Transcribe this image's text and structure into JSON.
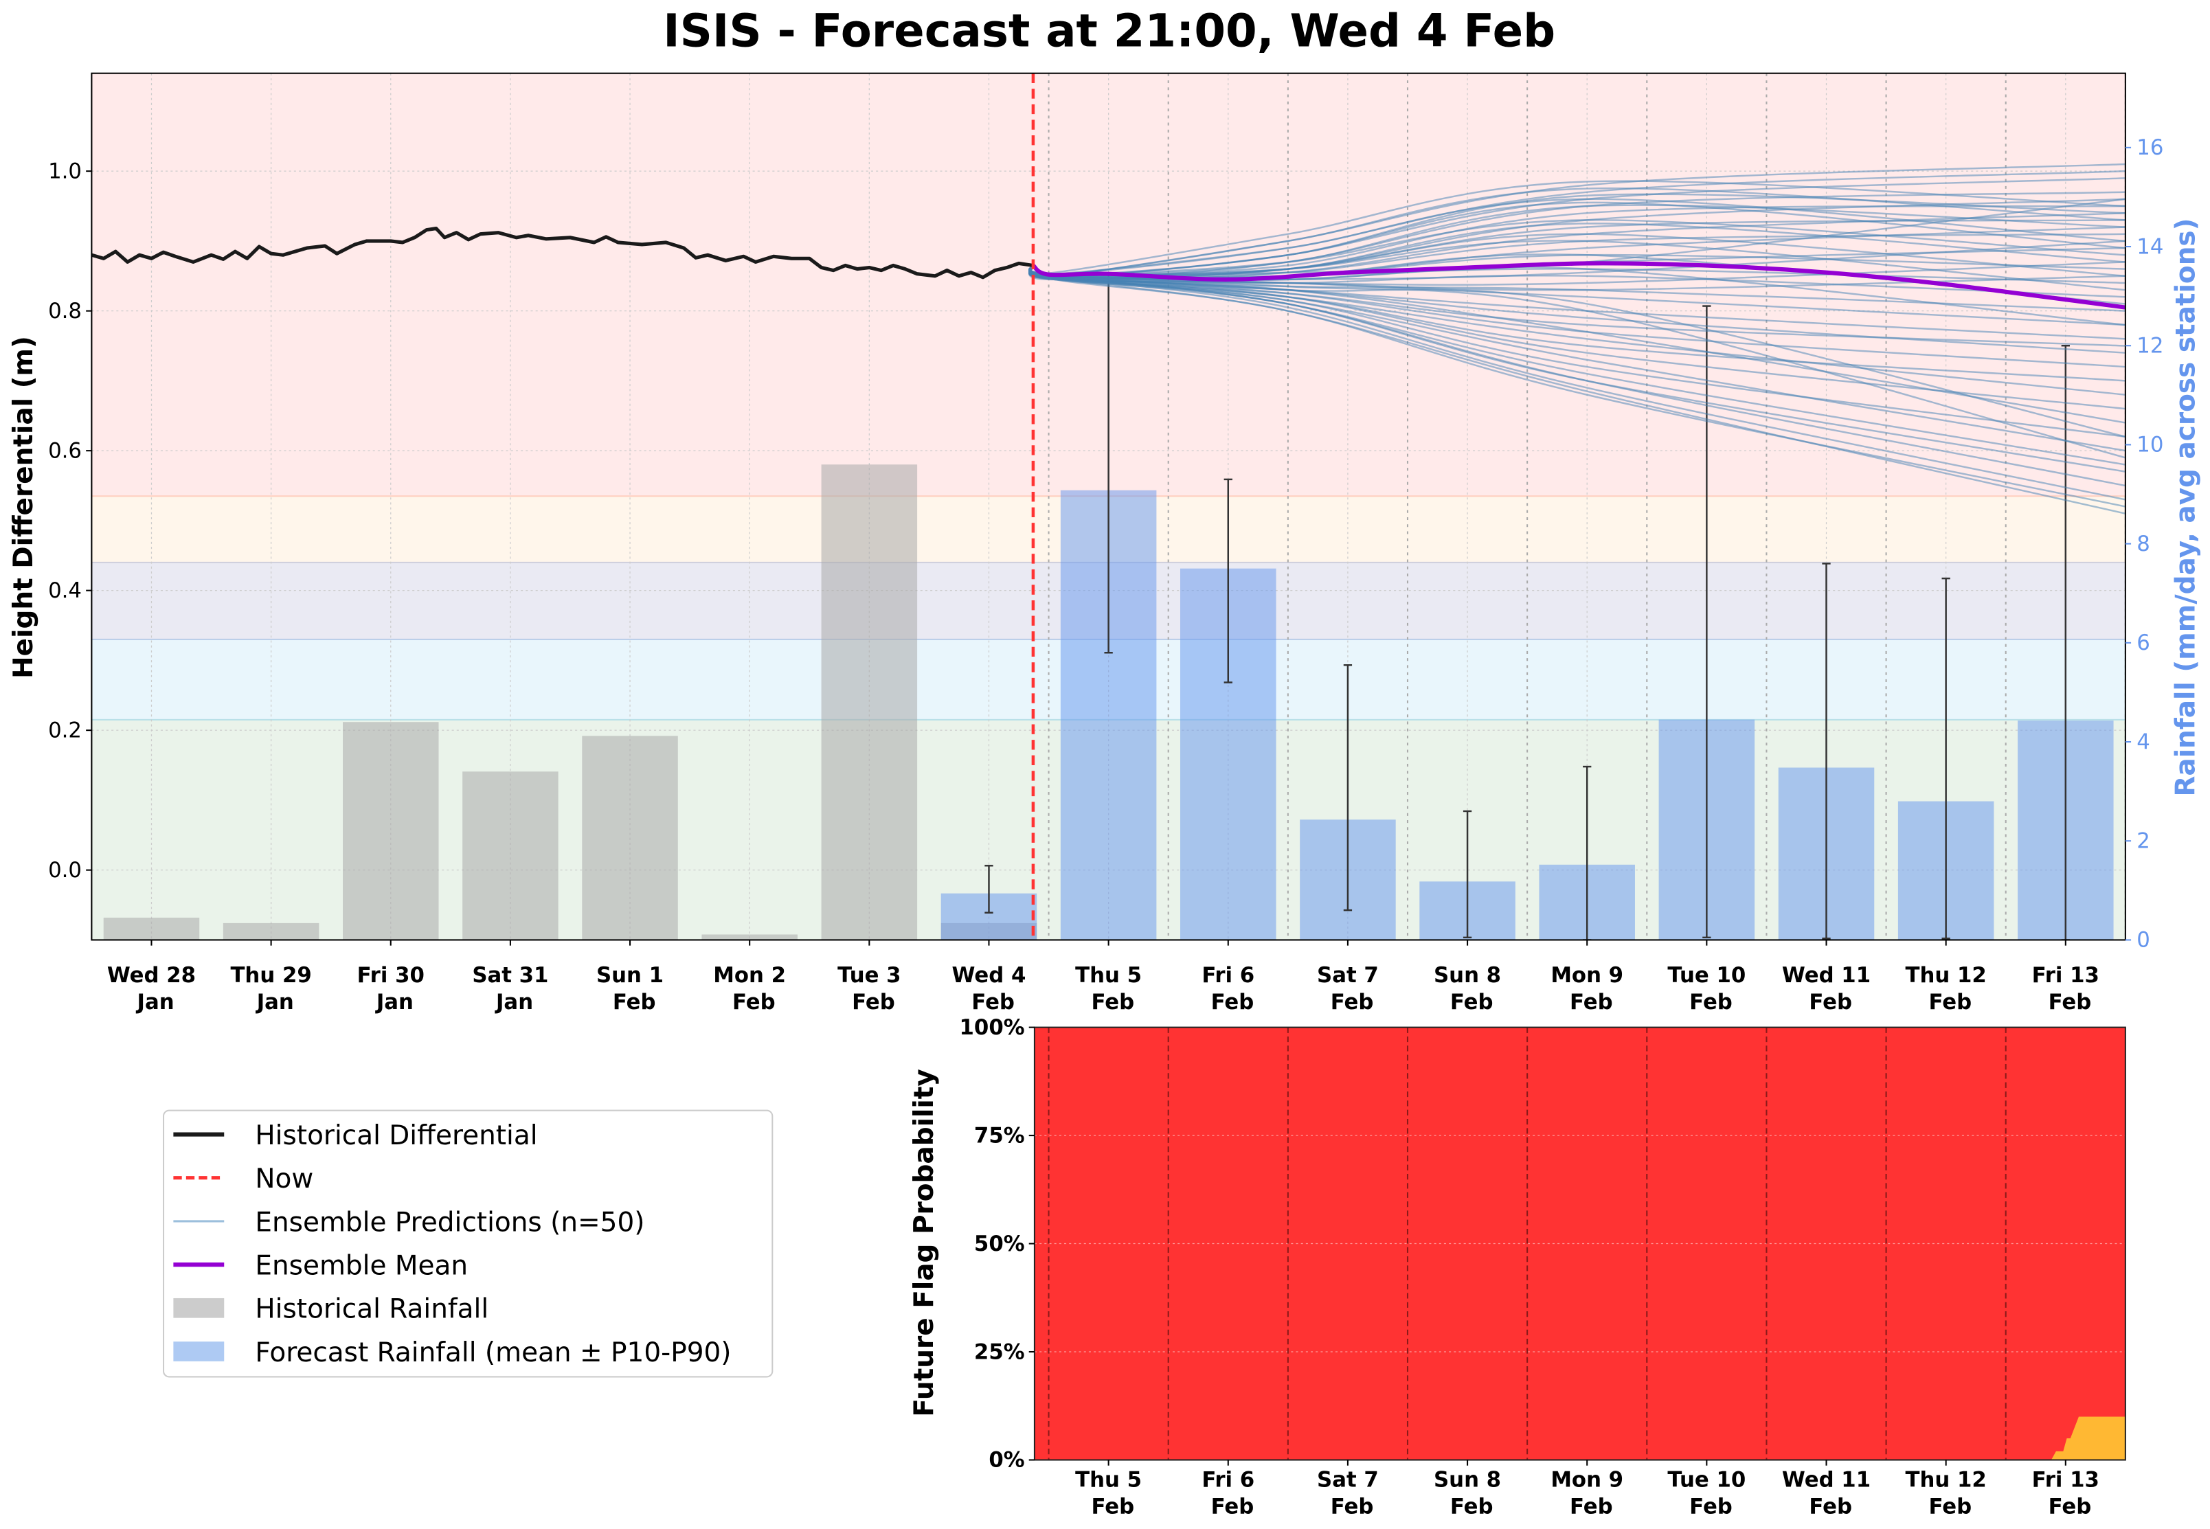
{
  "title": "ISIS - Forecast at 21:00, Wed 4 Feb",
  "colors": {
    "now": "#FF3333",
    "historical_line": "#1a1a1a",
    "ensemble": "#4682B4",
    "mean": "#9400D3",
    "hist_rain": "#AAAAAA",
    "forecast_rain": "#6495ED",
    "rain_axis": "#6495ED",
    "flag_red": "#FF3333",
    "flag_amber": "#FFB833"
  },
  "chart_data": [
    {
      "type": "line+bar",
      "xlabel": "",
      "ylabel": "Height Differential (m)",
      "y2label": "Rainfall (mm/day, avg across stations)",
      "ylim": [
        -0.1,
        1.14
      ],
      "y2lim": [
        0,
        17.5
      ],
      "y_ticks": [
        "0.0",
        "0.2",
        "0.4",
        "0.6",
        "0.8",
        "1.0"
      ],
      "y2_ticks": [
        "0",
        "2",
        "4",
        "6",
        "8",
        "10",
        "12",
        "14",
        "16"
      ],
      "grid": true,
      "x_tick_labels": [
        [
          "Wed 28",
          "Jan"
        ],
        [
          "Thu 29",
          "Jan"
        ],
        [
          "Fri 30",
          "Jan"
        ],
        [
          "Sat 31",
          "Jan"
        ],
        [
          "Sun 1",
          "Feb"
        ],
        [
          "Mon 2",
          "Feb"
        ],
        [
          "Tue 3",
          "Feb"
        ],
        [
          "Wed 4",
          "Feb"
        ],
        [
          "Thu 5",
          "Feb"
        ],
        [
          "Fri 6",
          "Feb"
        ],
        [
          "Sat 7",
          "Feb"
        ],
        [
          "Sun 8",
          "Feb"
        ],
        [
          "Mon 9",
          "Feb"
        ],
        [
          "Tue 10",
          "Feb"
        ],
        [
          "Wed 11",
          "Feb"
        ],
        [
          "Thu 12",
          "Feb"
        ],
        [
          "Fri 13",
          "Feb"
        ]
      ],
      "now_day_index": 7.37,
      "threshold_bands": [
        {
          "from": -0.1,
          "to": 0.215,
          "color": "#EAF3EA"
        },
        {
          "from": 0.215,
          "to": 0.33,
          "color": "#E9F6FC"
        },
        {
          "from": 0.33,
          "to": 0.44,
          "color": "#EAEAF3"
        },
        {
          "from": 0.44,
          "to": 0.535,
          "color": "#FFF6EB"
        },
        {
          "from": 0.535,
          "to": 1.14,
          "color": "#FFEAEA"
        }
      ],
      "historical_differential": [
        [
          -0.5,
          0.88
        ],
        [
          -0.4,
          0.875
        ],
        [
          -0.3,
          0.885
        ],
        [
          -0.2,
          0.87
        ],
        [
          -0.1,
          0.88
        ],
        [
          0,
          0.875
        ],
        [
          0.1,
          0.884
        ],
        [
          0.2,
          0.878
        ],
        [
          0.35,
          0.87
        ],
        [
          0.5,
          0.88
        ],
        [
          0.6,
          0.874
        ],
        [
          0.7,
          0.885
        ],
        [
          0.8,
          0.875
        ],
        [
          0.9,
          0.892
        ],
        [
          1.0,
          0.882
        ],
        [
          1.1,
          0.88
        ],
        [
          1.3,
          0.89
        ],
        [
          1.45,
          0.893
        ],
        [
          1.55,
          0.882
        ],
        [
          1.7,
          0.895
        ],
        [
          1.8,
          0.9
        ],
        [
          2.0,
          0.9
        ],
        [
          2.1,
          0.898
        ],
        [
          2.2,
          0.905
        ],
        [
          2.3,
          0.916
        ],
        [
          2.38,
          0.918
        ],
        [
          2.45,
          0.905
        ],
        [
          2.55,
          0.912
        ],
        [
          2.65,
          0.902
        ],
        [
          2.75,
          0.91
        ],
        [
          2.9,
          0.912
        ],
        [
          3.05,
          0.905
        ],
        [
          3.15,
          0.908
        ],
        [
          3.3,
          0.903
        ],
        [
          3.5,
          0.905
        ],
        [
          3.7,
          0.898
        ],
        [
          3.8,
          0.906
        ],
        [
          3.9,
          0.898
        ],
        [
          4.1,
          0.895
        ],
        [
          4.3,
          0.898
        ],
        [
          4.45,
          0.89
        ],
        [
          4.55,
          0.876
        ],
        [
          4.65,
          0.88
        ],
        [
          4.8,
          0.872
        ],
        [
          4.95,
          0.878
        ],
        [
          5.05,
          0.87
        ],
        [
          5.2,
          0.878
        ],
        [
          5.35,
          0.875
        ],
        [
          5.5,
          0.875
        ],
        [
          5.6,
          0.862
        ],
        [
          5.7,
          0.858
        ],
        [
          5.8,
          0.865
        ],
        [
          5.9,
          0.86
        ],
        [
          6.0,
          0.862
        ],
        [
          6.1,
          0.858
        ],
        [
          6.2,
          0.865
        ],
        [
          6.3,
          0.86
        ],
        [
          6.4,
          0.853
        ],
        [
          6.55,
          0.85
        ],
        [
          6.65,
          0.858
        ],
        [
          6.75,
          0.85
        ],
        [
          6.85,
          0.855
        ],
        [
          6.95,
          0.848
        ],
        [
          7.05,
          0.858
        ],
        [
          7.15,
          0.862
        ],
        [
          7.25,
          0.868
        ],
        [
          7.37,
          0.865
        ]
      ],
      "ensemble_mean": [
        [
          7.37,
          0.865
        ],
        [
          7.5,
          0.852
        ],
        [
          8,
          0.853
        ],
        [
          9,
          0.845
        ],
        [
          10,
          0.855
        ],
        [
          11,
          0.862
        ],
        [
          12,
          0.868
        ],
        [
          13,
          0.865
        ],
        [
          14,
          0.855
        ],
        [
          15,
          0.838
        ],
        [
          16.5,
          0.805
        ]
      ],
      "ensemble_knots_day_index": [
        7.37,
        7.55,
        9.5,
        12,
        16.5
      ],
      "ensemble_start": 0.865,
      "ensemble_members": [
        [
          0.85,
          0.9,
          0.98,
          1.01
        ],
        [
          0.852,
          0.89,
          0.97,
          1.0
        ],
        [
          0.848,
          0.88,
          0.96,
          0.99
        ],
        [
          0.855,
          0.91,
          0.985,
          0.95
        ],
        [
          0.85,
          0.9,
          0.975,
          0.93
        ],
        [
          0.845,
          0.87,
          0.95,
          0.97
        ],
        [
          0.85,
          0.88,
          0.965,
          0.94
        ],
        [
          0.853,
          0.89,
          0.96,
          0.9
        ],
        [
          0.847,
          0.86,
          0.93,
          0.96
        ],
        [
          0.85,
          0.87,
          0.95,
          0.92
        ],
        [
          0.848,
          0.88,
          0.955,
          0.89
        ],
        [
          0.852,
          0.865,
          0.94,
          0.95
        ],
        [
          0.849,
          0.86,
          0.92,
          0.93
        ],
        [
          0.846,
          0.855,
          0.91,
          0.94
        ],
        [
          0.851,
          0.87,
          0.93,
          0.88
        ],
        [
          0.848,
          0.86,
          0.925,
          0.87
        ],
        [
          0.85,
          0.855,
          0.9,
          0.91
        ],
        [
          0.847,
          0.85,
          0.89,
          0.92
        ],
        [
          0.852,
          0.86,
          0.91,
          0.85
        ],
        [
          0.849,
          0.85,
          0.88,
          0.86
        ],
        [
          0.845,
          0.845,
          0.87,
          0.89
        ],
        [
          0.848,
          0.85,
          0.86,
          0.84
        ],
        [
          0.85,
          0.845,
          0.855,
          0.9
        ],
        [
          0.846,
          0.84,
          0.85,
          0.82
        ],
        [
          0.851,
          0.84,
          0.84,
          0.87
        ],
        [
          0.847,
          0.835,
          0.83,
          0.8
        ],
        [
          0.849,
          0.84,
          0.82,
          0.78
        ],
        [
          0.845,
          0.83,
          0.8,
          0.76
        ],
        [
          0.848,
          0.83,
          0.79,
          0.74
        ],
        [
          0.85,
          0.825,
          0.77,
          0.72
        ],
        [
          0.846,
          0.82,
          0.75,
          0.7
        ],
        [
          0.849,
          0.82,
          0.74,
          0.66
        ],
        [
          0.845,
          0.815,
          0.72,
          0.62
        ],
        [
          0.848,
          0.815,
          0.73,
          0.6
        ],
        [
          0.85,
          0.81,
          0.71,
          0.58
        ],
        [
          0.846,
          0.81,
          0.7,
          0.55
        ],
        [
          0.849,
          0.805,
          0.69,
          0.53
        ],
        [
          0.845,
          0.8,
          0.68,
          0.52
        ],
        [
          0.847,
          0.8,
          0.685,
          0.51
        ],
        [
          0.85,
          0.81,
          0.7,
          0.57
        ],
        [
          0.848,
          0.82,
          0.76,
          0.68
        ],
        [
          0.846,
          0.825,
          0.78,
          0.75
        ],
        [
          0.851,
          0.83,
          0.81,
          0.62
        ],
        [
          0.849,
          0.835,
          0.8,
          0.59
        ],
        [
          0.847,
          0.83,
          0.77,
          0.64
        ],
        [
          0.852,
          0.845,
          0.86,
          0.78
        ],
        [
          0.848,
          0.85,
          0.88,
          0.81
        ],
        [
          0.85,
          0.86,
          0.9,
          0.83
        ],
        [
          0.846,
          0.84,
          0.83,
          0.85
        ],
        [
          0.851,
          0.855,
          0.87,
          0.96
        ]
      ],
      "historical_rainfall": [
        0.45,
        0.34,
        4.4,
        3.4,
        4.12,
        0.11,
        9.6,
        0.34
      ],
      "forecast_rainfall": [
        {
          "day_index": 7,
          "mean": 0.94,
          "p10": 0.55,
          "p90": 1.5
        },
        {
          "day_index": 8,
          "mean": 9.08,
          "p10": 5.8,
          "p90": 13.45
        },
        {
          "day_index": 9,
          "mean": 7.5,
          "p10": 5.2,
          "p90": 9.3
        },
        {
          "day_index": 10,
          "mean": 2.43,
          "p10": 0.6,
          "p90": 5.55
        },
        {
          "day_index": 11,
          "mean": 1.18,
          "p10": 0.05,
          "p90": 2.6
        },
        {
          "day_index": 12,
          "mean": 1.52,
          "p10": 0.0,
          "p90": 3.5
        },
        {
          "day_index": 13,
          "mean": 4.45,
          "p10": 0.05,
          "p90": 12.8
        },
        {
          "day_index": 14,
          "mean": 3.48,
          "p10": 0.03,
          "p90": 7.6
        },
        {
          "day_index": 15,
          "mean": 2.8,
          "p10": 0.03,
          "p90": 7.3
        },
        {
          "day_index": 16,
          "mean": 4.43,
          "p10": 0.0,
          "p90": 12.0
        }
      ],
      "legend": {
        "placement": "lower-left (outside)",
        "entries": [
          "Historical Differential",
          "Now",
          "Ensemble Predictions (n=50)",
          "Ensemble Mean",
          "Historical Rainfall",
          "Forecast Rainfall (mean ± P10-P90)"
        ]
      }
    },
    {
      "type": "area",
      "ylabel": "Future Flag Probability",
      "ylim": [
        0,
        100
      ],
      "y_ticks": [
        "0%",
        "25%",
        "50%",
        "75%",
        "100%"
      ],
      "x_tick_labels": [
        [
          "Thu 5",
          "Feb"
        ],
        [
          "Fri 6",
          "Feb"
        ],
        [
          "Sat 7",
          "Feb"
        ],
        [
          "Sun 8",
          "Feb"
        ],
        [
          "Mon 9",
          "Feb"
        ],
        [
          "Tue 10",
          "Feb"
        ],
        [
          "Wed 11",
          "Feb"
        ],
        [
          "Thu 12",
          "Feb"
        ],
        [
          "Fri 13",
          "Feb"
        ]
      ],
      "xlim_day_index": [
        7.37,
        16.5
      ],
      "series": [
        {
          "color": "#FFB833",
          "values": [
            [
              7.37,
              0
            ],
            [
              15.88,
              0
            ],
            [
              15.92,
              2
            ],
            [
              15.98,
              2
            ],
            [
              16.01,
              5
            ],
            [
              16.04,
              5
            ],
            [
              16.11,
              10
            ],
            [
              16.5,
              10
            ]
          ]
        },
        {
          "color": "#FF3333",
          "values": [
            [
              7.37,
              100
            ],
            [
              15.88,
              100
            ],
            [
              15.92,
              98
            ],
            [
              15.98,
              98
            ],
            [
              16.01,
              95
            ],
            [
              16.04,
              95
            ],
            [
              16.11,
              90
            ],
            [
              16.5,
              90
            ]
          ]
        }
      ]
    }
  ]
}
